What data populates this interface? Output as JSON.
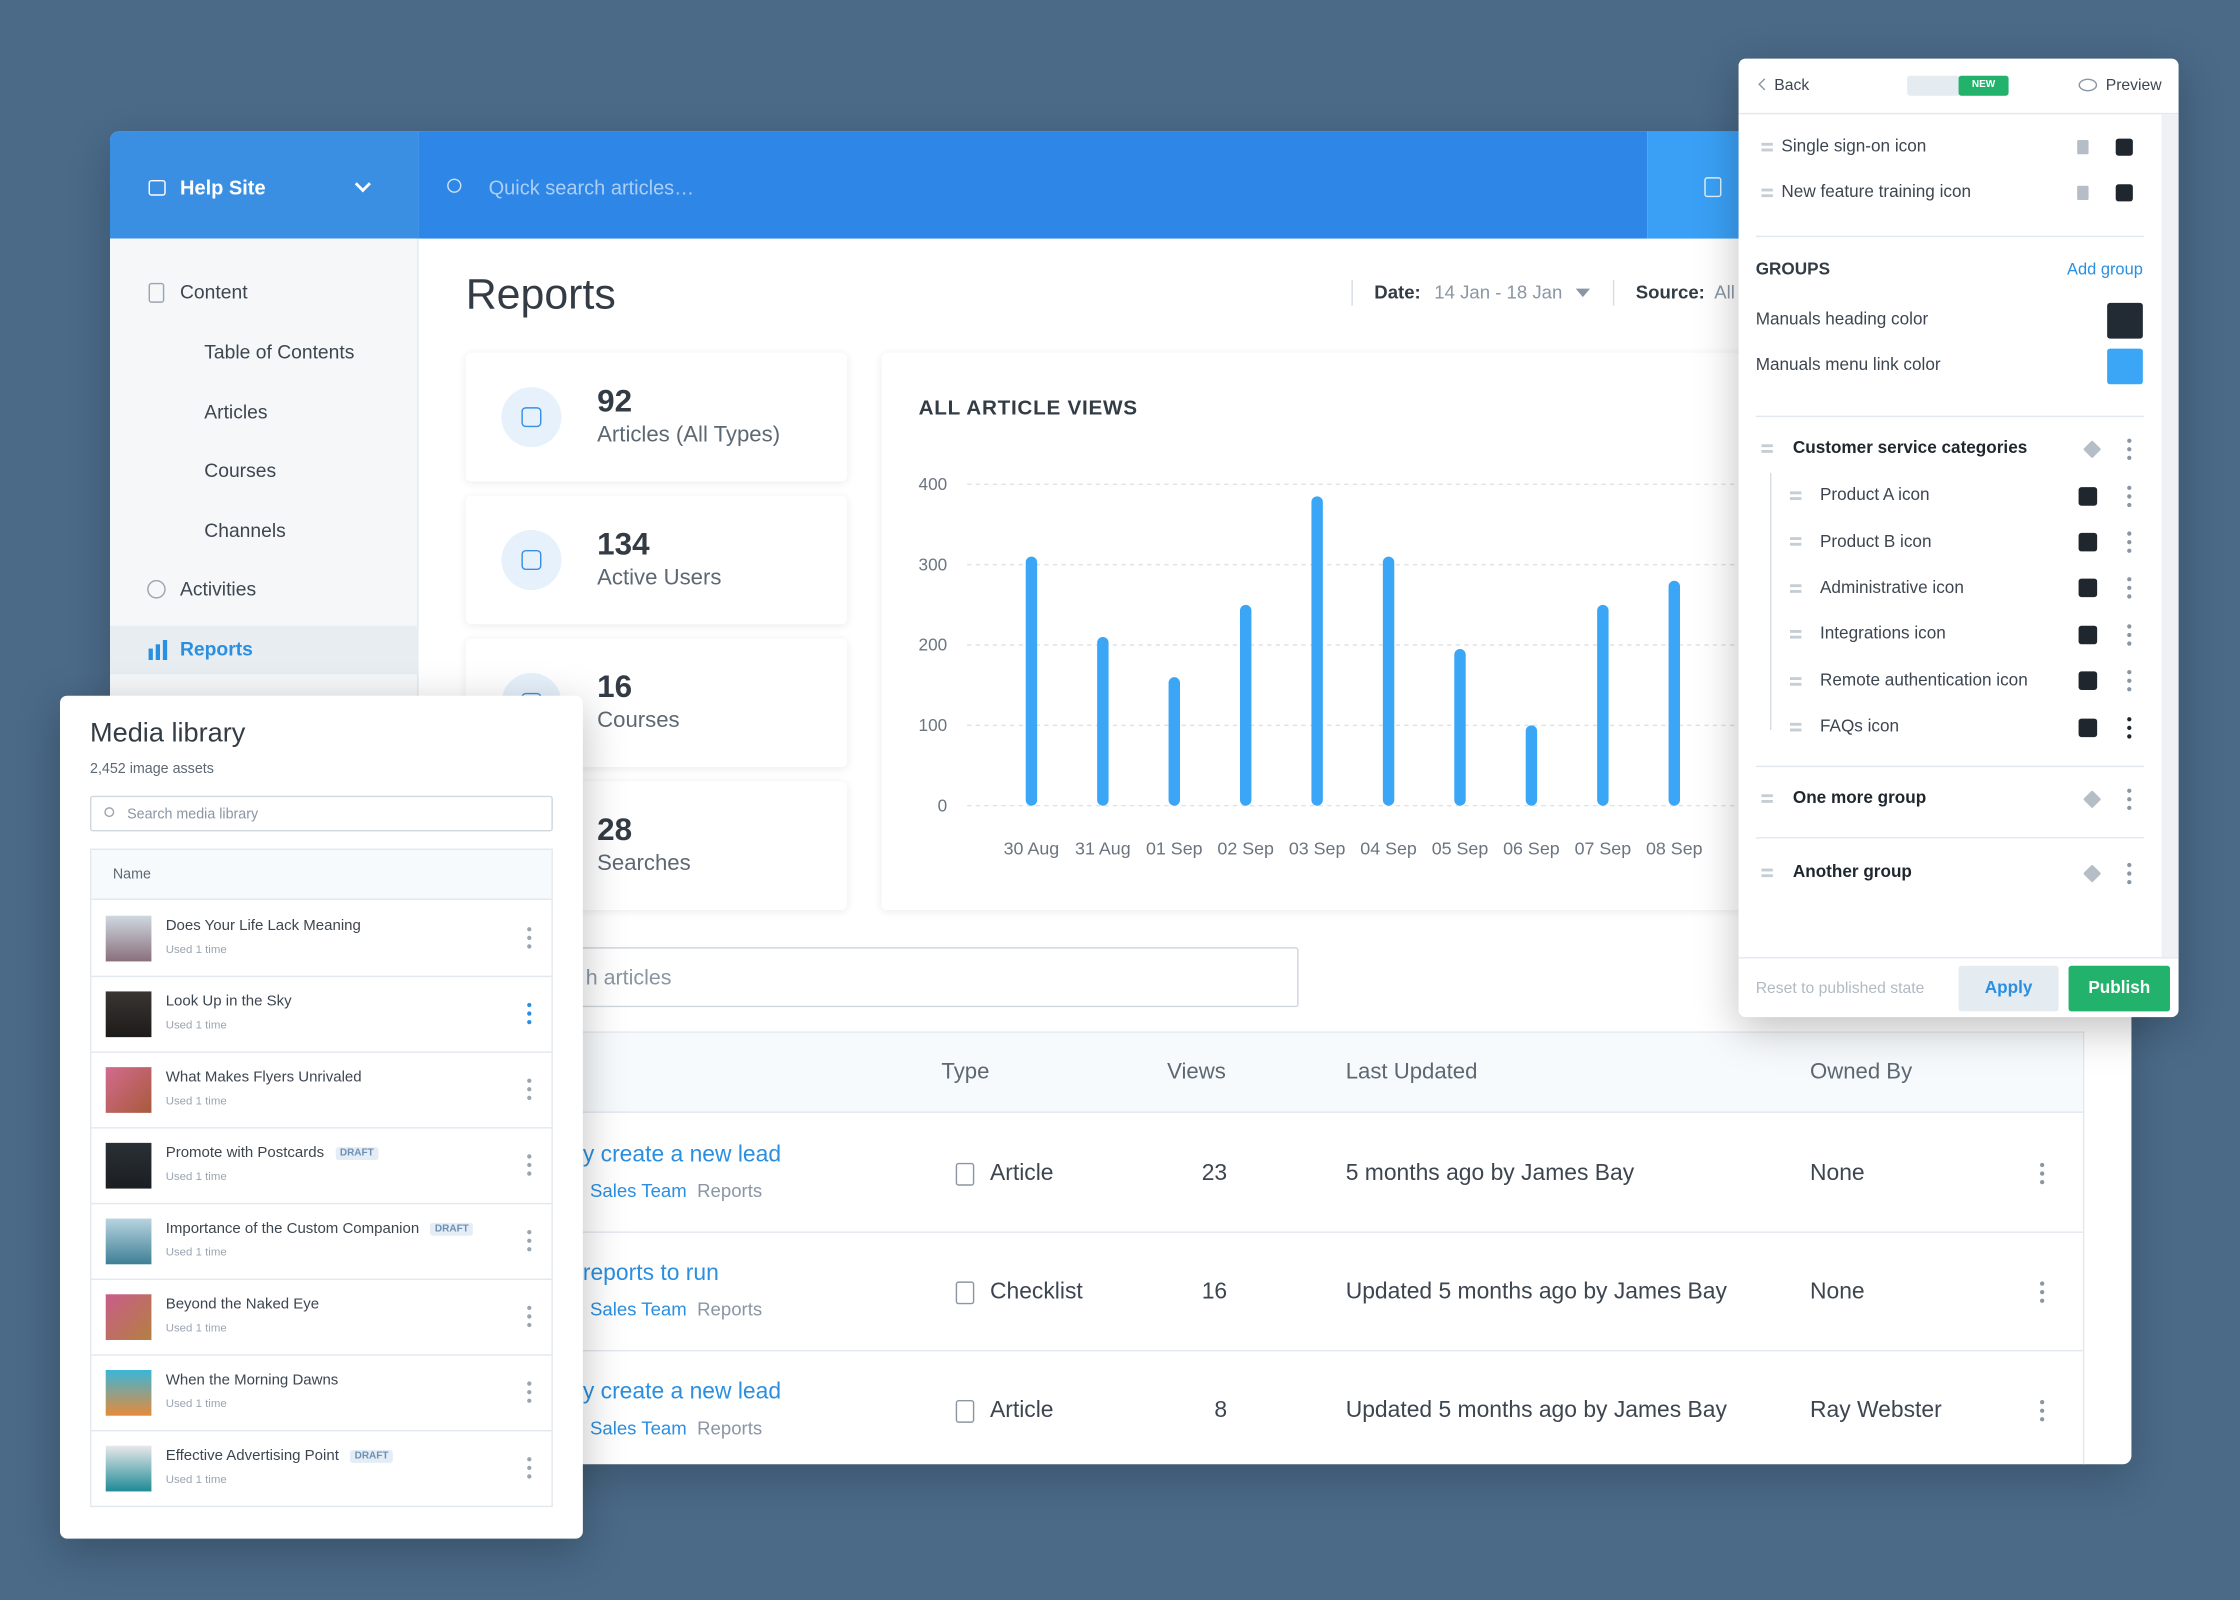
{
  "header": {
    "site": "Help Site",
    "search_placeholder": "Quick search articles…"
  },
  "sidebar": {
    "items": [
      "Content",
      "Table of Contents",
      "Articles",
      "Courses",
      "Channels",
      "Activities",
      "Reports"
    ]
  },
  "reports": {
    "title": "Reports",
    "date_label": "Date:",
    "date_value": "14 Jan - 18 Jan",
    "source_label": "Source:",
    "source_value": "All",
    "stats": [
      {
        "value": 92,
        "label": "Articles (All Types)"
      },
      {
        "value": 134,
        "label": "Active Users"
      },
      {
        "value": 16,
        "label": "Courses"
      },
      {
        "value": 28,
        "label": "Searches"
      }
    ]
  },
  "chart_data": {
    "type": "bar",
    "title": "ALL ARTICLE VIEWS",
    "categories": [
      "30 Aug",
      "31 Aug",
      "01 Sep",
      "02 Sep",
      "03 Sep",
      "04 Sep",
      "05 Sep",
      "06 Sep",
      "07 Sep",
      "08 Sep"
    ],
    "values": [
      310,
      210,
      160,
      250,
      385,
      310,
      195,
      100,
      250,
      280
    ],
    "color": "#3aa6f5",
    "ylim": [
      0,
      400
    ],
    "yticks": [
      0,
      100,
      200,
      300,
      400
    ],
    "grid": true
  },
  "table": {
    "search": "h articles",
    "columns": [
      "Type",
      "Views",
      "Last Updated",
      "Owned By"
    ],
    "rows": [
      {
        "title": "y create a new lead",
        "team": "Sales Team",
        "section": "Reports",
        "type": "Article",
        "views": 23,
        "updated": "5 months ago by James Bay",
        "owner": "None"
      },
      {
        "title": "reports to run",
        "team": "Sales Team",
        "section": "Reports",
        "type": "Checklist",
        "views": 16,
        "updated": "Updated 5 months ago by James Bay",
        "owner": "None"
      },
      {
        "title": "y create a new lead",
        "team": "Sales Team",
        "section": "Reports",
        "type": "Article",
        "views": 8,
        "updated": "Updated 5 months ago by James Bay",
        "owner": "Ray Webster"
      }
    ]
  },
  "media_library": {
    "title": "Media library",
    "count": "2,452 image assets",
    "search": "Search media library",
    "column": "Name",
    "items": [
      {
        "name": "Does Your Life Lack Meaning",
        "usage": "Used 1 time"
      },
      {
        "name": "Look Up in the Sky",
        "usage": "Used 1 time"
      },
      {
        "name": "What Makes Flyers Unrivaled",
        "usage": "Used 1 time"
      },
      {
        "name": "Promote with Postcards",
        "usage": "Used 1 time",
        "badge": "DRAFT"
      },
      {
        "name": "Importance of the Custom Companion",
        "usage": "Used 1 time",
        "badge": "DRAFT"
      },
      {
        "name": "Beyond the Naked Eye",
        "usage": "Used 1 time"
      },
      {
        "name": "When the Morning Dawns",
        "usage": "Used 1 time"
      },
      {
        "name": "Effective Advertising Point",
        "usage": "Used 1 time",
        "badge": "DRAFT"
      }
    ]
  },
  "settings_panel": {
    "back": "Back",
    "badge": "NEW",
    "preview": "Preview",
    "icons": [
      "Single sign-on icon",
      "New feature training icon"
    ],
    "groups_heading": "GROUPS",
    "add_group": "Add group",
    "colors": [
      {
        "label": "Manuals heading color",
        "color": "#222b33"
      },
      {
        "label": "Manuals menu link color",
        "color": "#3aa6f5"
      }
    ],
    "groups": [
      {
        "name": "Customer service categories",
        "items": [
          "Product A icon",
          "Product B icon",
          "Administrative icon",
          "Integrations icon",
          "Remote authentication icon",
          "FAQs icon"
        ]
      },
      {
        "name": "One more group"
      },
      {
        "name": "Another group"
      }
    ],
    "reset": "Reset to published state",
    "apply": "Apply",
    "publish": "Publish"
  }
}
